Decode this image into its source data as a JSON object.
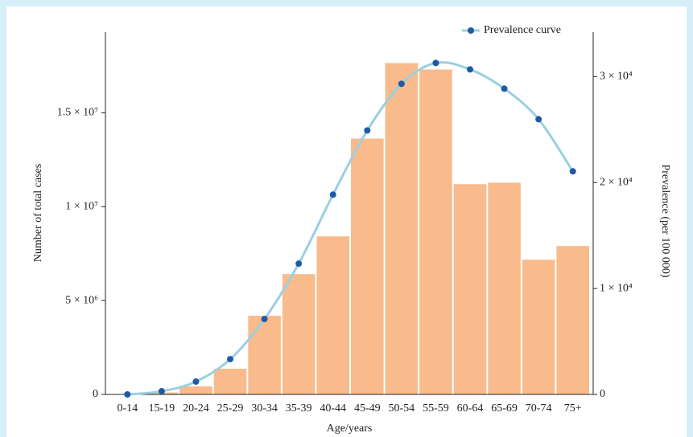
{
  "chart_data": {
    "type": "bar_line",
    "categories": [
      "0-14",
      "15-19",
      "20-24",
      "25-29",
      "30-34",
      "35-39",
      "40-44",
      "45-49",
      "50-54",
      "55-59",
      "60-64",
      "65-69",
      "70-74",
      "75+"
    ],
    "series": [
      {
        "type": "bar",
        "color": "#f9bb8c",
        "values": [
          0,
          100000,
          430000,
          1370000,
          4190000,
          6410000,
          8420000,
          13630000,
          17650000,
          17310000,
          11200000,
          11280000,
          7180000,
          7910000
        ]
      },
      {
        "type": "line",
        "name": "Prevalence curve",
        "color": "#9ccfe0",
        "marker_color": "#1f5aa6",
        "axis": "y2",
        "values": [
          0,
          300,
          1210,
          3330,
          7120,
          12350,
          18860,
          24920,
          29320,
          31290,
          30680,
          28860,
          25980,
          21060
        ]
      }
    ],
    "xlabel": "Age/years",
    "ylabel": "Number of total cases",
    "y2label": "Prevalence (per 100 000)",
    "ylim": [
      0,
      19300000
    ],
    "yticks": [
      0,
      {
        "value": 5000000,
        "label": "5 × 10⁶"
      },
      {
        "value": 10000000,
        "label": "1 × 10⁷"
      },
      {
        "value": 15000000,
        "label": "1.5 × 10⁷"
      }
    ],
    "y2lim": [
      0,
      34200
    ],
    "y2ticks": [
      0,
      {
        "value": 10000,
        "label": "1 × 10⁴"
      },
      {
        "value": 20000,
        "label": "2 × 10⁴"
      },
      {
        "value": 30000,
        "label": "3 × 10⁴"
      }
    ],
    "legend": "top-right"
  }
}
